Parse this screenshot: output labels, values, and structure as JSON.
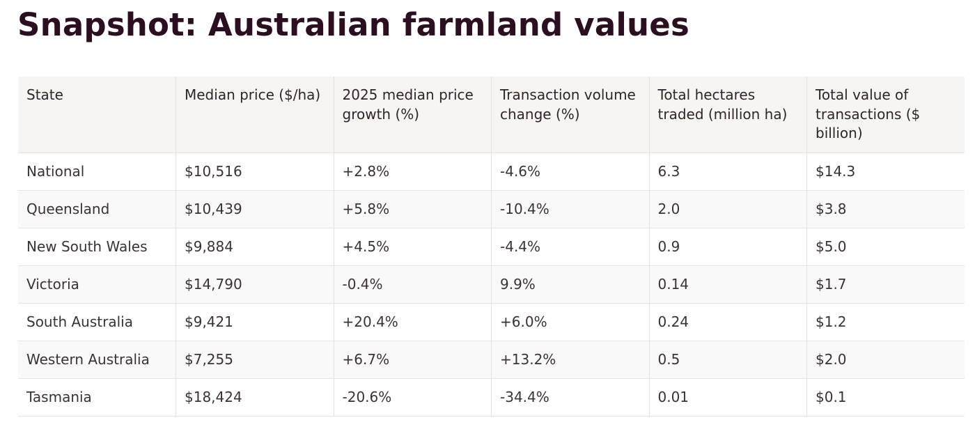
{
  "title": "Snapshot: Australian farmland values",
  "table": {
    "headers": [
      "State",
      "Median price ($/ha)",
      "2025 median price growth (%)",
      "Transaction volume change (%)",
      "Total hectares traded (million ha)",
      "Total value of transactions ($ billion)"
    ],
    "rows": [
      [
        "National",
        "$10,516",
        "+2.8%",
        "-4.6%",
        "6.3",
        "$14.3"
      ],
      [
        "Queensland",
        "$10,439",
        "+5.8%",
        "-10.4%",
        "2.0",
        "$3.8"
      ],
      [
        "New South Wales",
        "$9,884",
        "+4.5%",
        "-4.4%",
        "0.9",
        "$5.0"
      ],
      [
        "Victoria",
        "$14,790",
        "-0.4%",
        "9.9%",
        "0.14",
        "$1.7"
      ],
      [
        "South Australia",
        "$9,421",
        "+20.4%",
        "+6.0%",
        "0.24",
        "$1.2"
      ],
      [
        "Western Australia",
        "$7,255",
        "+6.7%",
        "+13.2%",
        "0.5",
        "$2.0"
      ],
      [
        "Tasmania",
        "$18,424",
        "-20.6%",
        "-34.4%",
        "0.01",
        "$0.1"
      ]
    ]
  },
  "colors": {
    "title": "#2b0e1f",
    "header_bg": "#f6f5f4",
    "alt_row_bg": "#faf9f9",
    "border": "#e3e1e1"
  }
}
